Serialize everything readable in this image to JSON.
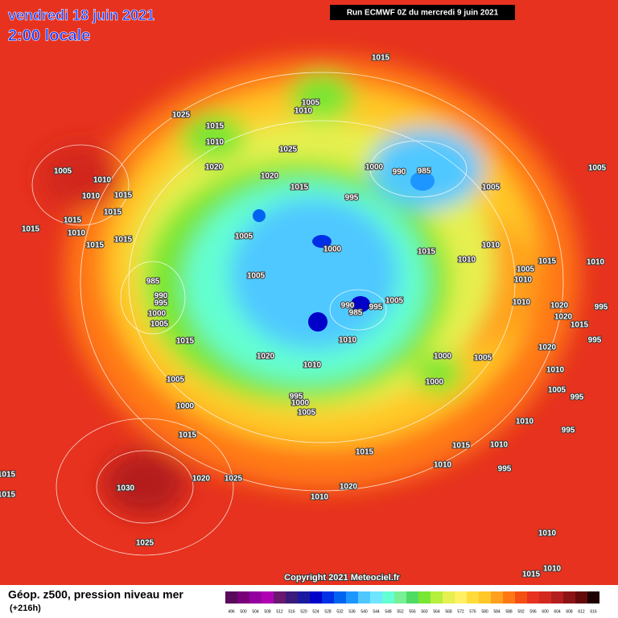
{
  "header": {
    "date": "vendredi 18 juin 2021",
    "time": "2:00 locale",
    "run": "Run ECMWF 0Z du mercredi 9 juin 2021"
  },
  "copyright": "Copyright 2021 Meteociel.fr",
  "footer": {
    "title": "Géop. z500, pression niveau mer",
    "lead": "(+216h)"
  },
  "scale": {
    "levels": [
      496,
      500,
      504,
      508,
      512,
      516,
      520,
      524,
      528,
      532,
      536,
      540,
      544,
      548,
      552,
      556,
      560,
      564,
      568,
      572,
      576,
      580,
      584,
      588,
      592,
      596,
      600,
      604,
      608,
      612,
      616
    ],
    "colors": [
      "#5a0a5a",
      "#780078",
      "#9400a0",
      "#b000b4",
      "#6a1870",
      "#3a1a7a",
      "#1a1aa0",
      "#0000c8",
      "#0030e6",
      "#0064f0",
      "#1e96ff",
      "#50c8ff",
      "#6ee6ff",
      "#64ffd2",
      "#78f096",
      "#50dc64",
      "#78e632",
      "#b4f03c",
      "#e6f050",
      "#fff064",
      "#ffdc3c",
      "#ffc828",
      "#ffa01e",
      "#ff7814",
      "#f55014",
      "#e6321e",
      "#d2281e",
      "#b41e1e",
      "#8c1414",
      "#640a0a",
      "#1e0000"
    ]
  },
  "isobars": [
    1015,
    1005,
    1010,
    1025,
    1015,
    1010,
    1025,
    1020,
    1020,
    1015,
    1005,
    1010,
    1010,
    1015,
    1015,
    995,
    1000,
    990,
    985,
    1005,
    1005,
    1015,
    1015,
    1010,
    1015,
    1015,
    1005,
    1000,
    1015,
    1010,
    1010,
    1005,
    1015,
    1010,
    1010,
    985,
    990,
    995,
    1000,
    1005,
    1005,
    990,
    985,
    995,
    1005,
    1010,
    1020,
    1020,
    1015,
    995,
    1015,
    1010,
    1020,
    1010,
    1000,
    1005,
    1020,
    995,
    1005,
    1000,
    1010,
    1005,
    995,
    995,
    1000,
    1005,
    1000,
    1010,
    995,
    1015,
    1015,
    1010,
    1015,
    1010,
    995,
    1015,
    1020,
    1025,
    1030,
    1020,
    1015,
    1010,
    1025,
    1010,
    1015,
    1010
  ]
}
